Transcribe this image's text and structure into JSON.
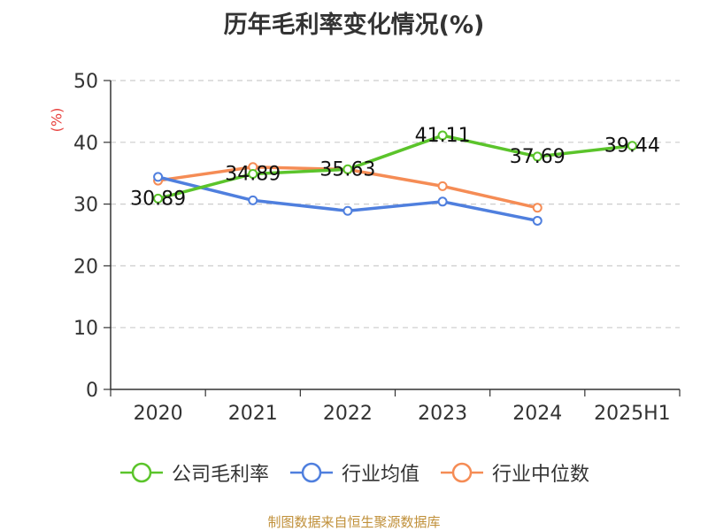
{
  "title": "历年毛利率变化情况(%)",
  "chart_data": {
    "type": "line",
    "title": "历年毛利率变化情况(%)",
    "ylabel": "(%)",
    "xlabel": "",
    "ylim": [
      0,
      50
    ],
    "yticks": [
      0,
      10,
      20,
      30,
      40,
      50
    ],
    "categories": [
      "2020",
      "2021",
      "2022",
      "2023",
      "2024",
      "2025H1"
    ],
    "grid": true,
    "legend_position": "bottom",
    "series": [
      {
        "name": "公司毛利率",
        "color": "#5bc42b",
        "values": [
          30.89,
          34.89,
          35.63,
          41.11,
          37.69,
          39.44
        ],
        "show_labels": true
      },
      {
        "name": "行业均值",
        "color": "#4f7fde",
        "values": [
          34.4,
          30.6,
          28.9,
          30.4,
          27.3,
          null
        ],
        "show_labels": false
      },
      {
        "name": "行业中位数",
        "color": "#f58c55",
        "values": [
          33.8,
          36.0,
          35.6,
          32.9,
          29.4,
          null
        ],
        "show_labels": false
      }
    ]
  },
  "source": "制图数据来自恒生聚源数据库"
}
